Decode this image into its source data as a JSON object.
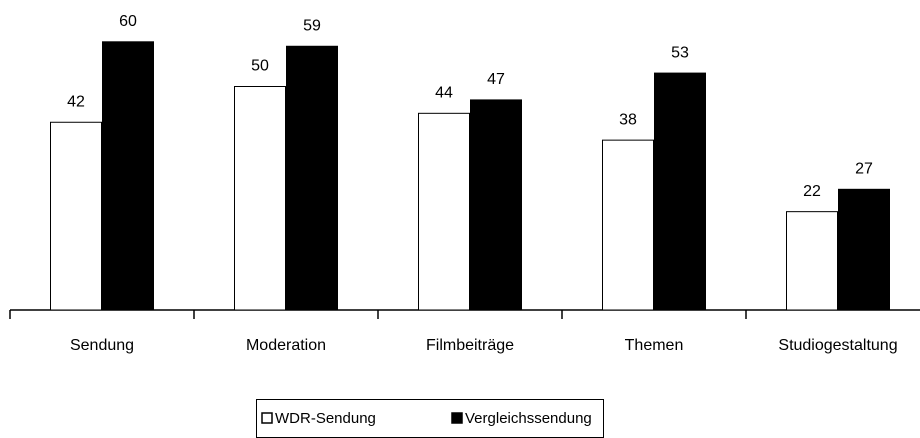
{
  "chart_data": {
    "type": "bar",
    "categories": [
      "Sendung",
      "Moderation",
      "Filmbeiträge",
      "Themen",
      "Studiogestaltung"
    ],
    "series": [
      {
        "name": "WDR-Sendung",
        "color": "#ffffff",
        "values": [
          42,
          50,
          44,
          38,
          22
        ]
      },
      {
        "name": "Vergleichssendung",
        "color": "#000000",
        "values": [
          60,
          59,
          47,
          53,
          27
        ]
      }
    ],
    "legend": "bottom"
  }
}
